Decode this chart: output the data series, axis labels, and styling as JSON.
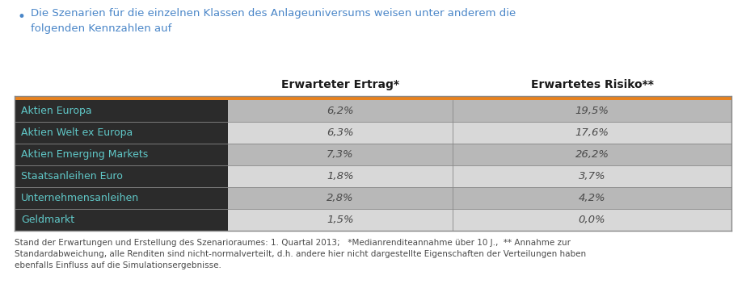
{
  "bullet_text": "Die Szenarien für die einzelnen Klassen des Anlageuniversums weisen unter anderem die\nfolgenden Kennzahlen auf",
  "col_headers": [
    "Erwarteter Ertrag*",
    "Erwartetes Risiko**"
  ],
  "rows": [
    {
      "label": "Aktien Europa",
      "ertrag": "6,2%",
      "risiko": "19,5%"
    },
    {
      "label": "Aktien Welt ex Europa",
      "ertrag": "6,3%",
      "risiko": "17,6%"
    },
    {
      "label": "Aktien Emerging Markets",
      "ertrag": "7,3%",
      "risiko": "26,2%"
    },
    {
      "label": "Staatsanleihen Euro",
      "ertrag": "1,8%",
      "risiko": "3,7%"
    },
    {
      "label": "Unternehmensanleihen",
      "ertrag": "2,8%",
      "risiko": "4,2%"
    },
    {
      "label": "Geldmarkt",
      "ertrag": "1,5%",
      "risiko": "0,0%"
    }
  ],
  "footer_text": "Stand der Erwartungen und Erstellung des Szenarioraumes: 1. Quartal 2013;   *Medianrenditeannahme über 10 J.,  ** Annahme zur\nStandardabweichung, alle Renditen sind nicht-normalverteilt, d.h. andere hier nicht dargestellte Eigenschaften der Verteilungen haben\nebenfalls Einfluss auf die Simulationsergebnisse.",
  "dark_bg_color": "#2b2b2b",
  "orange_color": "#e8821e",
  "light_gray_cell": "#b8b8b8",
  "lighter_gray_cell": "#d8d8d8",
  "white_bg": "#ffffff",
  "header_text_color": "#1a1a1a",
  "cell_text_color": "#4a4a4a",
  "bullet_text_color": "#4a86c8",
  "footer_text_color": "#4a4a4a",
  "row_label_color": "#60c8c8",
  "table_border_color": "#888888",
  "col_divider_color": "#888888"
}
